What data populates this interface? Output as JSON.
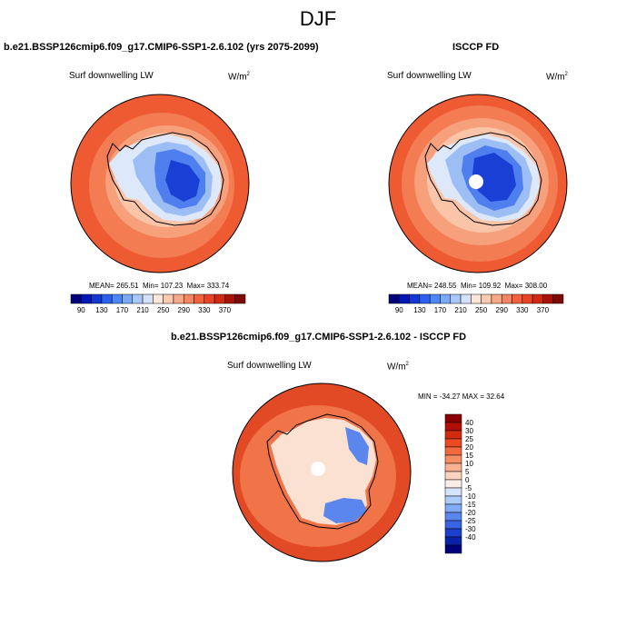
{
  "season": "DJF",
  "variable": "Surf downwelling LW",
  "units": "W/m",
  "units_exp": "2",
  "panels": {
    "model": {
      "title": "b.e21.BSSP126cmip6.f09_g17.CMIP6-SSP1-2.6.102 (yrs 2075-2099)",
      "mean": "265.51",
      "min": "107.23",
      "max": "333.74",
      "mean_label": "MEAN=",
      "min_label": "Min=",
      "max_label": "Max="
    },
    "obs": {
      "title": "ISCCP FD",
      "mean": "248.55",
      "min": "109.92",
      "max": "308.00",
      "mean_label": "MEAN=",
      "min_label": "Min=",
      "max_label": "Max="
    },
    "diff": {
      "title": "b.e21.BSSP126cmip6.f09_g17.CMIP6-SSP1-2.6.102 - ISCCP FD",
      "range_text": "MIN = -34.27 MAX =  32.64"
    }
  },
  "colorbar_abs": {
    "labels": [
      "90",
      "130",
      "170",
      "210",
      "250",
      "290",
      "330",
      "370"
    ],
    "colors": [
      "#00007a",
      "#0018b4",
      "#1238d6",
      "#2a5ff0",
      "#4f86f5",
      "#7aa9f7",
      "#a9c8f8",
      "#d3e2fa",
      "#fbe6d8",
      "#fbcab0",
      "#f8a787",
      "#f5845f",
      "#f2623e",
      "#e84324",
      "#d22a12",
      "#a81308",
      "#7d0a05"
    ]
  },
  "colorbar_diff": {
    "labels": [
      "40",
      "30",
      "25",
      "20",
      "15",
      "10",
      "5",
      "0",
      "-5",
      "-10",
      "-15",
      "-20",
      "-25",
      "-30",
      "-40"
    ],
    "colors": [
      "#8b0000",
      "#b30e06",
      "#d32b10",
      "#ec4b22",
      "#f46a3f",
      "#f78d65",
      "#f9b193",
      "#fcd4c0",
      "#fbeee6",
      "#d6e4fb",
      "#aecbf8",
      "#83aaf4",
      "#5a86ee",
      "#3a63e2",
      "#1c3fcd",
      "#0a22a8",
      "#00007a"
    ]
  },
  "map_colors": {
    "ocean_warm": "#ee5a32",
    "ocean_mid": "#f47c52",
    "ocean_light": "#f7a07c",
    "ocean_pale": "#fac4a8",
    "ice_pale": "#dde8fb",
    "ice_light": "#9dbdf5",
    "ice_mid": "#4f7fee",
    "ice_deep": "#1a3fd4",
    "diff_red": "#e14a25",
    "diff_orange": "#f07448",
    "diff_pale": "#fbe1d2",
    "diff_blue": "#5a86ee"
  }
}
